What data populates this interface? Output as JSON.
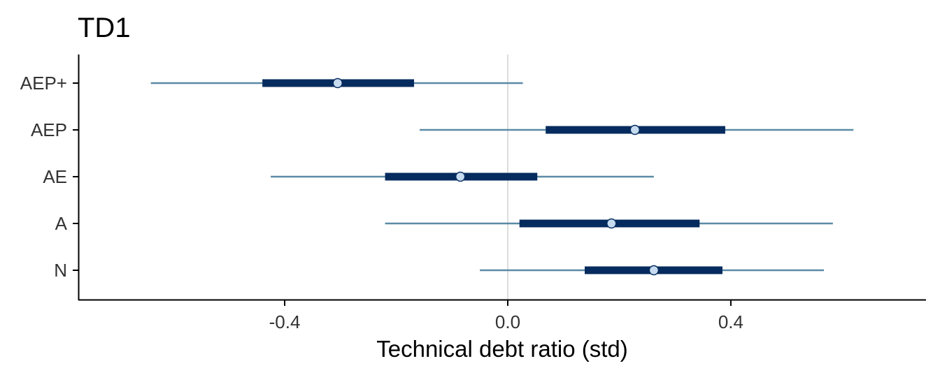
{
  "chart_data": {
    "type": "interval",
    "title": "TD1",
    "xlabel": "Technical debt ratio (std)",
    "ylabel": "",
    "xlim": [
      -0.77,
      0.75
    ],
    "x_ticks": [
      "-0.4",
      "0.0",
      "0.4"
    ],
    "x_tick_values": [
      -0.4,
      0.0,
      0.4
    ],
    "reference_line_x": 0.0,
    "grid": false,
    "categories": [
      "AEP+",
      "AEP",
      "AE",
      "A",
      "N"
    ],
    "series": [
      {
        "category": "AEP+",
        "median": -0.305,
        "inner": [
          -0.44,
          -0.168
        ],
        "outer": [
          -0.64,
          0.027
        ]
      },
      {
        "category": "AEP",
        "median": 0.228,
        "inner": [
          0.068,
          0.39
        ],
        "outer": [
          -0.158,
          0.62
        ]
      },
      {
        "category": "AE",
        "median": -0.085,
        "inner": [
          -0.22,
          0.053
        ],
        "outer": [
          -0.425,
          0.262
        ]
      },
      {
        "category": "A",
        "median": 0.186,
        "inner": [
          0.021,
          0.344
        ],
        "outer": [
          -0.22,
          0.583
        ]
      },
      {
        "category": "N",
        "median": 0.262,
        "inner": [
          0.138,
          0.385
        ],
        "outer": [
          -0.05,
          0.567
        ]
      }
    ],
    "colors": {
      "outer_interval": "#5a8aa6",
      "inner_interval": "#062b5e",
      "point_fill": "#c6dbef",
      "point_stroke": "#062b5e",
      "reference_line": "#dddddd",
      "axis": "#000000"
    }
  }
}
